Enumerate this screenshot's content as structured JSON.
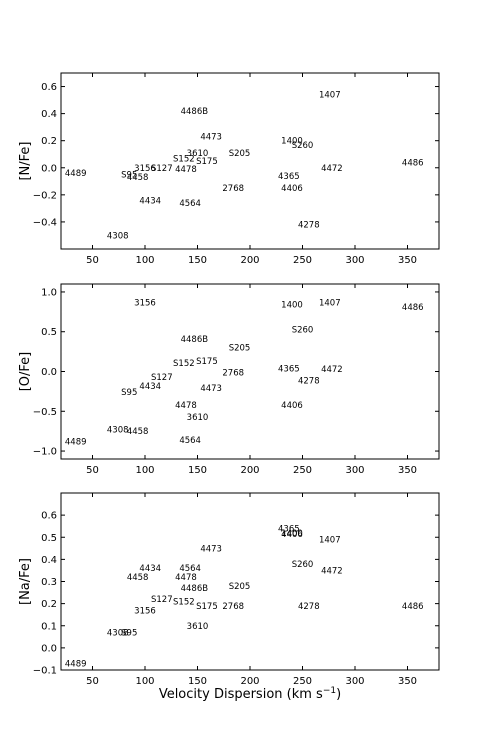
{
  "figure": {
    "xlabel": "Velocity Dispersion (km s",
    "xlabel_unit_sup": "−1",
    "xlabel_close": ")"
  },
  "chart_data": [
    {
      "type": "scatter",
      "ylabel": "[N/Fe]",
      "xlim": [
        20,
        380
      ],
      "ylim": [
        -0.6,
        0.7
      ],
      "xticks": [
        50,
        100,
        150,
        200,
        250,
        300,
        350
      ],
      "yticks": [
        -0.4,
        -0.2,
        0.0,
        0.2,
        0.4,
        0.6
      ],
      "ytick_labels": [
        "−0.4",
        "−0.2",
        "0.0",
        "0.2",
        "0.4",
        "0.6"
      ],
      "points": [
        {
          "label": "1407",
          "x": 276,
          "y": 0.54
        },
        {
          "label": "4486B",
          "x": 147,
          "y": 0.42
        },
        {
          "label": "4473",
          "x": 163,
          "y": 0.23
        },
        {
          "label": "1400",
          "x": 240,
          "y": 0.2
        },
        {
          "label": "S260",
          "x": 250,
          "y": 0.17
        },
        {
          "label": "3610",
          "x": 150,
          "y": 0.11
        },
        {
          "label": "S205",
          "x": 190,
          "y": 0.11
        },
        {
          "label": "S152",
          "x": 137,
          "y": 0.07
        },
        {
          "label": "S175",
          "x": 159,
          "y": 0.05
        },
        {
          "label": "4486",
          "x": 355,
          "y": 0.04
        },
        {
          "label": "3156",
          "x": 100,
          "y": 0.0
        },
        {
          "label": "S127",
          "x": 116,
          "y": 0.0
        },
        {
          "label": "4478",
          "x": 139,
          "y": -0.01
        },
        {
          "label": "4472",
          "x": 278,
          "y": 0.0
        },
        {
          "label": "4489",
          "x": 34,
          "y": -0.04
        },
        {
          "label": "S95",
          "x": 85,
          "y": -0.05
        },
        {
          "label": "4458",
          "x": 93,
          "y": -0.07
        },
        {
          "label": "4365",
          "x": 237,
          "y": -0.06
        },
        {
          "label": "2768",
          "x": 184,
          "y": -0.15
        },
        {
          "label": "4406",
          "x": 240,
          "y": -0.15
        },
        {
          "label": "4434",
          "x": 105,
          "y": -0.24
        },
        {
          "label": "4564",
          "x": 143,
          "y": -0.26
        },
        {
          "label": "4278",
          "x": 256,
          "y": -0.42
        },
        {
          "label": "4308",
          "x": 74,
          "y": -0.5
        }
      ]
    },
    {
      "type": "scatter",
      "ylabel": "[O/Fe]",
      "xlim": [
        20,
        380
      ],
      "ylim": [
        -1.1,
        1.1
      ],
      "xticks": [
        50,
        100,
        150,
        200,
        250,
        300,
        350
      ],
      "yticks": [
        -1.0,
        -0.5,
        0.0,
        0.5,
        1.0
      ],
      "ytick_labels": [
        "−1.0",
        "−0.5",
        "0.0",
        "0.5",
        "1.0"
      ],
      "points": [
        {
          "label": "3156",
          "x": 100,
          "y": 0.87
        },
        {
          "label": "1400",
          "x": 240,
          "y": 0.84
        },
        {
          "label": "1407",
          "x": 276,
          "y": 0.87
        },
        {
          "label": "4486",
          "x": 355,
          "y": 0.81
        },
        {
          "label": "S260",
          "x": 250,
          "y": 0.53
        },
        {
          "label": "4486B",
          "x": 147,
          "y": 0.41
        },
        {
          "label": "S205",
          "x": 190,
          "y": 0.3
        },
        {
          "label": "S152",
          "x": 137,
          "y": 0.11
        },
        {
          "label": "S175",
          "x": 159,
          "y": 0.13
        },
        {
          "label": "4365",
          "x": 237,
          "y": 0.04
        },
        {
          "label": "4472",
          "x": 278,
          "y": 0.03
        },
        {
          "label": "2768",
          "x": 184,
          "y": -0.01
        },
        {
          "label": "S127",
          "x": 116,
          "y": -0.07
        },
        {
          "label": "4278",
          "x": 256,
          "y": -0.11
        },
        {
          "label": "4434",
          "x": 105,
          "y": -0.18
        },
        {
          "label": "4473",
          "x": 163,
          "y": -0.21
        },
        {
          "label": "S95",
          "x": 85,
          "y": -0.26
        },
        {
          "label": "4478",
          "x": 139,
          "y": -0.42
        },
        {
          "label": "4406",
          "x": 240,
          "y": -0.42
        },
        {
          "label": "3610",
          "x": 150,
          "y": -0.57
        },
        {
          "label": "4308",
          "x": 74,
          "y": -0.73
        },
        {
          "label": "4458",
          "x": 93,
          "y": -0.75
        },
        {
          "label": "4489",
          "x": 34,
          "y": -0.88
        },
        {
          "label": "4564",
          "x": 143,
          "y": -0.86
        }
      ]
    },
    {
      "type": "scatter",
      "ylabel": "[Na/Fe]",
      "xlabel": "Velocity Dispersion (km s⁻¹)",
      "xlim": [
        20,
        380
      ],
      "ylim": [
        -0.1,
        0.7
      ],
      "xticks": [
        50,
        100,
        150,
        200,
        250,
        300,
        350
      ],
      "yticks": [
        -0.1,
        0.0,
        0.1,
        0.2,
        0.3,
        0.4,
        0.5,
        0.6
      ],
      "ytick_labels": [
        "−0.1",
        "0.0",
        "0.1",
        "0.2",
        "0.3",
        "0.4",
        "0.5",
        "0.6"
      ],
      "points": [
        {
          "label": "4365",
          "x": 237,
          "y": 0.54
        },
        {
          "label": "1400",
          "x": 240,
          "y": 0.52
        },
        {
          "label": "4406",
          "x": 240,
          "y": 0.515
        },
        {
          "label": "1407",
          "x": 276,
          "y": 0.49
        },
        {
          "label": "4473",
          "x": 163,
          "y": 0.45
        },
        {
          "label": "S260",
          "x": 250,
          "y": 0.38
        },
        {
          "label": "4434",
          "x": 105,
          "y": 0.36
        },
        {
          "label": "4564",
          "x": 143,
          "y": 0.36
        },
        {
          "label": "4472",
          "x": 278,
          "y": 0.35
        },
        {
          "label": "4458",
          "x": 93,
          "y": 0.32
        },
        {
          "label": "4478",
          "x": 139,
          "y": 0.32
        },
        {
          "label": "4486B",
          "x": 147,
          "y": 0.27
        },
        {
          "label": "S205",
          "x": 190,
          "y": 0.28
        },
        {
          "label": "S127",
          "x": 116,
          "y": 0.22
        },
        {
          "label": "S152",
          "x": 137,
          "y": 0.21
        },
        {
          "label": "S175",
          "x": 159,
          "y": 0.19
        },
        {
          "label": "2768",
          "x": 184,
          "y": 0.19
        },
        {
          "label": "4278",
          "x": 256,
          "y": 0.19
        },
        {
          "label": "4486",
          "x": 355,
          "y": 0.19
        },
        {
          "label": "3156",
          "x": 100,
          "y": 0.17
        },
        {
          "label": "3610",
          "x": 150,
          "y": 0.1
        },
        {
          "label": "4308",
          "x": 74,
          "y": 0.07
        },
        {
          "label": "S95",
          "x": 85,
          "y": 0.07
        },
        {
          "label": "4489",
          "x": 34,
          "y": -0.07
        }
      ]
    }
  ]
}
